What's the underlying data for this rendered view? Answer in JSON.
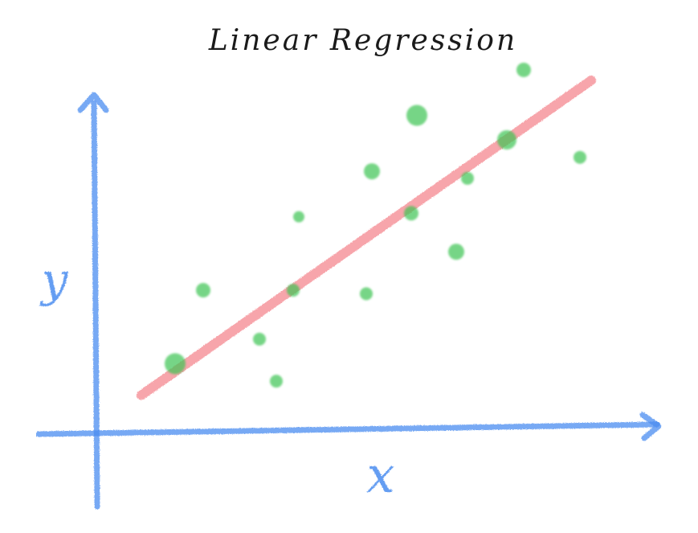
{
  "chart_data": {
    "type": "scatter",
    "title": "Linear Regression",
    "xlabel": "x",
    "ylabel": "y",
    "xlim": [
      0,
      10
    ],
    "ylim": [
      0,
      10
    ],
    "grid": false,
    "points_color": "#3cc452",
    "line_color": "#f26a73",
    "axis_color": "#4a8cf0",
    "title_color": "#1a1a1a",
    "series": [
      {
        "x": [
          1.4,
          1.9,
          2.9,
          3.2,
          3.5,
          3.6,
          4.8,
          4.9,
          5.6,
          5.7,
          6.4,
          6.6,
          7.3,
          7.6,
          8.6
        ],
        "y": [
          1.9,
          4.0,
          2.6,
          1.4,
          4.0,
          6.1,
          3.9,
          7.4,
          6.2,
          9.0,
          5.1,
          7.2,
          8.3,
          10.3,
          7.8
        ]
      }
    ],
    "regression_line": {
      "x": [
        0.8,
        8.8
      ],
      "y": [
        1.0,
        10.0
      ]
    }
  }
}
